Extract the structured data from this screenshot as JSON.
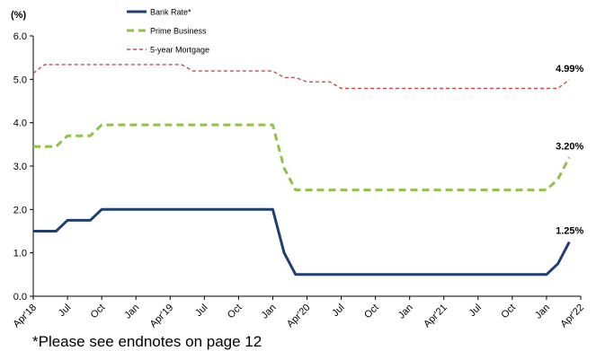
{
  "chart_data": {
    "type": "line",
    "title": "",
    "ylabel": "(%)",
    "xlabel": "",
    "ylim": [
      0,
      6
    ],
    "yticks": [
      "0.0",
      "1.0",
      "2.0",
      "3.0",
      "4.0",
      "5.0",
      "6.0"
    ],
    "x_start": "2018-04",
    "x_end": "2022-04",
    "xticks": [
      {
        "label": "Apr'18",
        "date": "2018-04"
      },
      {
        "label": "Jul",
        "date": "2018-07"
      },
      {
        "label": "Oct",
        "date": "2018-10"
      },
      {
        "label": "Jan",
        "date": "2019-01"
      },
      {
        "label": "Apr'19",
        "date": "2019-04"
      },
      {
        "label": "Jul",
        "date": "2019-07"
      },
      {
        "label": "Oct",
        "date": "2019-10"
      },
      {
        "label": "Jan",
        "date": "2020-01"
      },
      {
        "label": "Apr'20",
        "date": "2020-04"
      },
      {
        "label": "Jul",
        "date": "2020-07"
      },
      {
        "label": "Oct",
        "date": "2020-10"
      },
      {
        "label": "Jan",
        "date": "2021-01"
      },
      {
        "label": "Apr'21",
        "date": "2021-04"
      },
      {
        "label": "Jul",
        "date": "2021-07"
      },
      {
        "label": "Oct",
        "date": "2021-10"
      },
      {
        "label": "Jan",
        "date": "2022-01"
      },
      {
        "label": "Apr'22",
        "date": "2022-04"
      }
    ],
    "legend_position": "top",
    "series": [
      {
        "name": "Bank Rate*",
        "color": "#1f3f74",
        "style": "solid",
        "end_label": "1.25%",
        "points": [
          {
            "x": "2018-04",
            "y": 1.5
          },
          {
            "x": "2018-06",
            "y": 1.5
          },
          {
            "x": "2018-07",
            "y": 1.75
          },
          {
            "x": "2018-09",
            "y": 1.75
          },
          {
            "x": "2018-10",
            "y": 2.0
          },
          {
            "x": "2020-01",
            "y": 2.0
          },
          {
            "x": "2020-02",
            "y": 1.0
          },
          {
            "x": "2020-03",
            "y": 0.5
          },
          {
            "x": "2022-01",
            "y": 0.5
          },
          {
            "x": "2022-02",
            "y": 0.75
          },
          {
            "x": "2022-03",
            "y": 1.25
          }
        ]
      },
      {
        "name": "Prime Business",
        "color": "#92c14a",
        "style": "dashed",
        "end_label": "3.20%",
        "points": [
          {
            "x": "2018-04",
            "y": 3.45
          },
          {
            "x": "2018-06",
            "y": 3.45
          },
          {
            "x": "2018-07",
            "y": 3.7
          },
          {
            "x": "2018-09",
            "y": 3.7
          },
          {
            "x": "2018-10",
            "y": 3.95
          },
          {
            "x": "2020-01",
            "y": 3.95
          },
          {
            "x": "2020-02",
            "y": 2.95
          },
          {
            "x": "2020-03",
            "y": 2.45
          },
          {
            "x": "2022-01",
            "y": 2.45
          },
          {
            "x": "2022-02",
            "y": 2.7
          },
          {
            "x": "2022-03",
            "y": 3.2
          }
        ]
      },
      {
        "name": "5-year Mortgage",
        "color": "#c0504d",
        "style": "dotted",
        "end_label": "4.99%",
        "points": [
          {
            "x": "2018-04",
            "y": 5.14
          },
          {
            "x": "2018-05",
            "y": 5.34
          },
          {
            "x": "2019-05",
            "y": 5.34
          },
          {
            "x": "2019-06",
            "y": 5.19
          },
          {
            "x": "2020-01",
            "y": 5.19
          },
          {
            "x": "2020-02",
            "y": 5.04
          },
          {
            "x": "2020-03",
            "y": 5.04
          },
          {
            "x": "2020-04",
            "y": 4.94
          },
          {
            "x": "2020-06",
            "y": 4.94
          },
          {
            "x": "2020-07",
            "y": 4.79
          },
          {
            "x": "2022-02",
            "y": 4.79
          },
          {
            "x": "2022-03",
            "y": 4.99
          }
        ]
      }
    ]
  },
  "footnote": "*Please see endnotes on page 12"
}
